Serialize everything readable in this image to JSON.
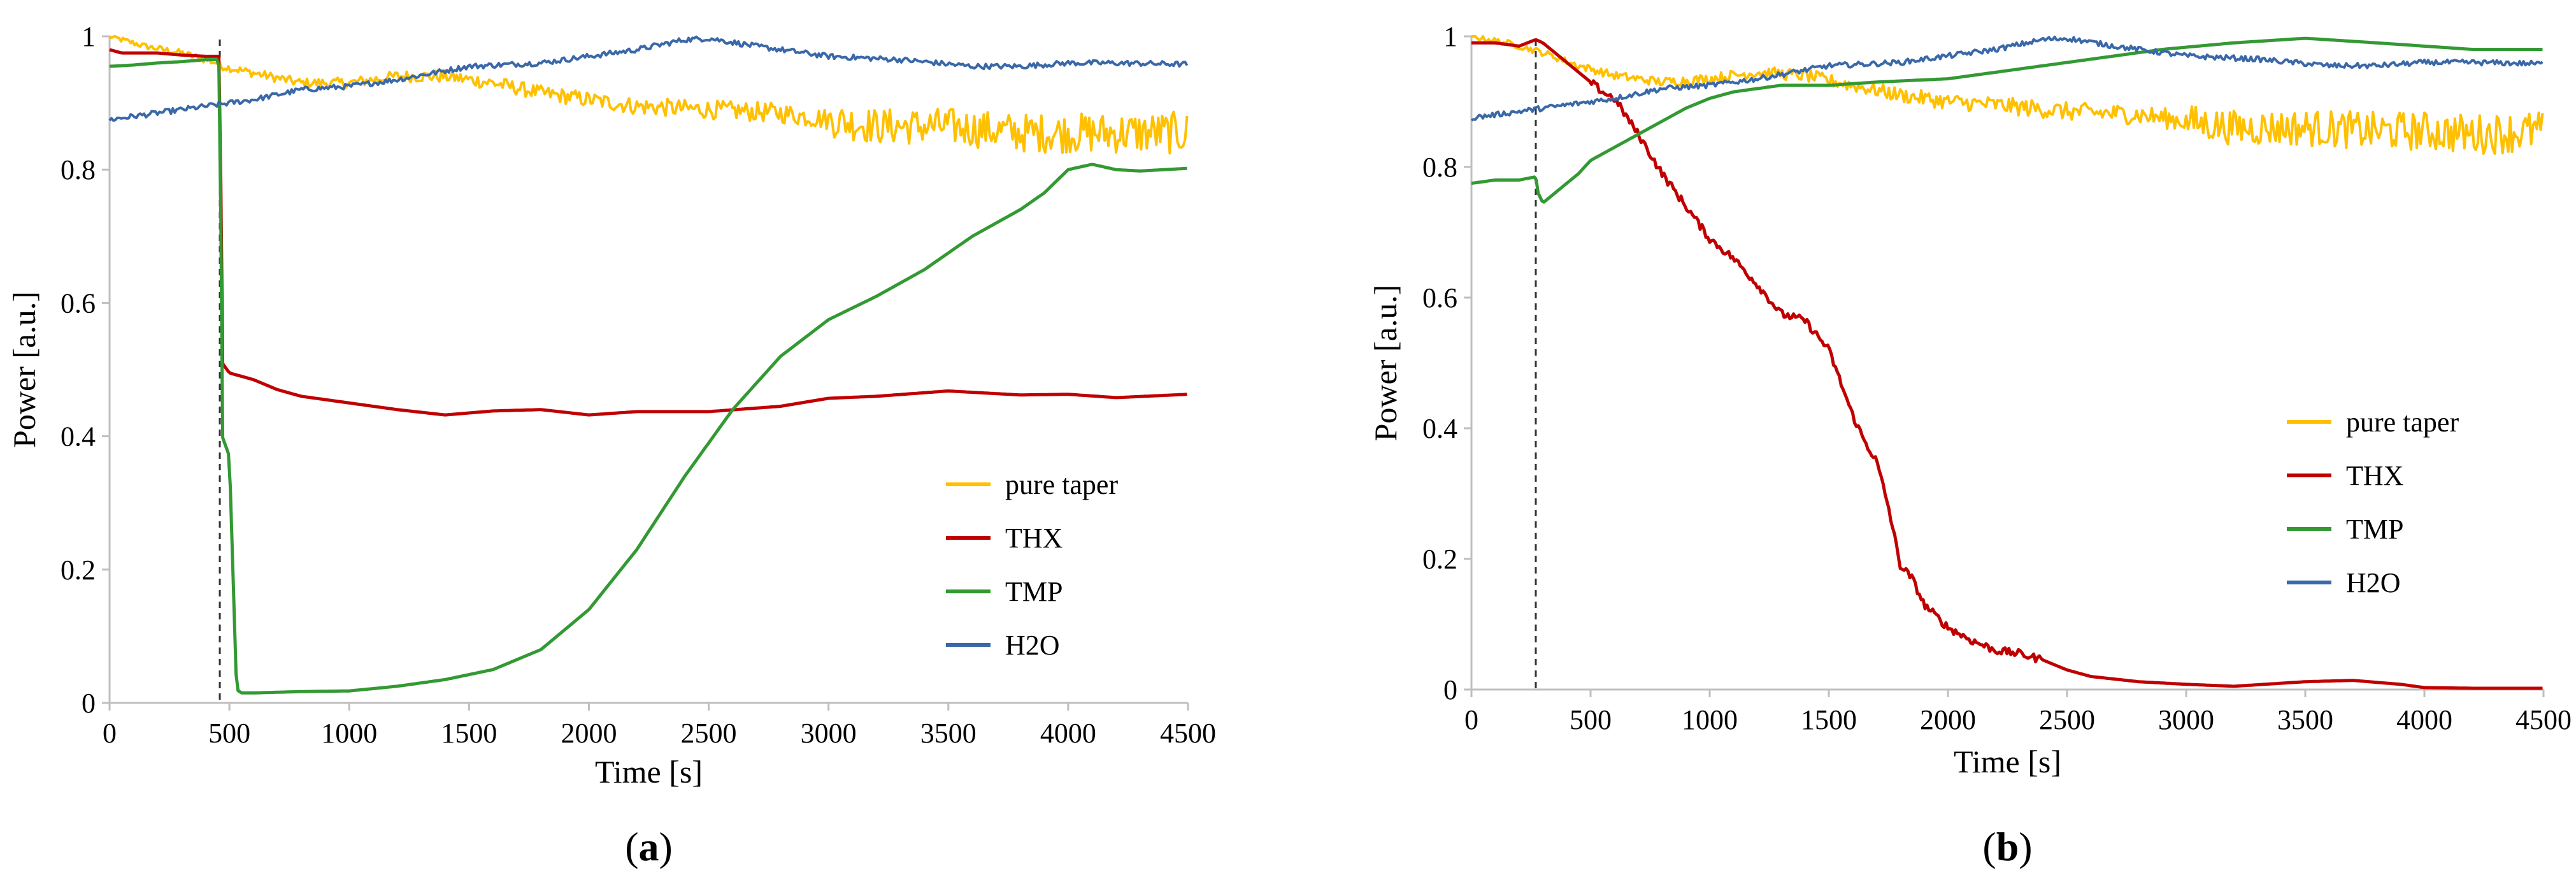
{
  "chart_data": [
    {
      "panel": "a",
      "type": "line",
      "xlabel": "Time [s]",
      "ylabel": "Power [a.u.]",
      "xlim": [
        0,
        4500
      ],
      "ylim": [
        0,
        1
      ],
      "xticks": [
        0,
        500,
        1000,
        1500,
        2000,
        2500,
        3000,
        3500,
        4000,
        4500
      ],
      "yticks": [
        0,
        0.2,
        0.4,
        0.6,
        0.8,
        1
      ],
      "ytick_labels": [
        "0",
        "0.2",
        "0.4",
        "0.6",
        "0.8",
        "1"
      ],
      "marker_x": 460,
      "legend": [
        "pure taper",
        "THX",
        "TMP",
        "H2O"
      ],
      "legend_placement": "lower-right",
      "caption": "(a)",
      "caption_letter": "a",
      "series": [
        {
          "name": "pure taper",
          "color": "#ffc000",
          "x": [
            0,
            150,
            300,
            450,
            470,
            600,
            800,
            1000,
            1200,
            1400,
            1600,
            1800,
            2000,
            2200,
            2500,
            2800,
            3000,
            3200,
            3500,
            3800,
            4000,
            4200,
            4500
          ],
          "values": [
            1.0,
            0.985,
            0.975,
            0.96,
            0.955,
            0.945,
            0.93,
            0.93,
            0.94,
            0.94,
            0.93,
            0.915,
            0.905,
            0.895,
            0.89,
            0.885,
            0.875,
            0.865,
            0.865,
            0.855,
            0.855,
            0.855,
            0.855
          ]
        },
        {
          "name": "THX",
          "color": "#c00000",
          "x": [
            0,
            50,
            100,
            200,
            300,
            400,
            450,
            460,
            470,
            500,
            600,
            700,
            800,
            1000,
            1200,
            1400,
            1600,
            1800,
            2000,
            2200,
            2500,
            2800,
            3000,
            3200,
            3500,
            3800,
            4000,
            4200,
            4500
          ],
          "values": [
            0.98,
            0.975,
            0.975,
            0.975,
            0.972,
            0.97,
            0.97,
            0.97,
            0.51,
            0.495,
            0.485,
            0.47,
            0.46,
            0.45,
            0.44,
            0.432,
            0.438,
            0.44,
            0.432,
            0.437,
            0.437,
            0.445,
            0.457,
            0.46,
            0.468,
            0.462,
            0.463,
            0.458,
            0.463
          ]
        },
        {
          "name": "TMP",
          "color": "#339933",
          "x": [
            0,
            100,
            200,
            300,
            400,
            450,
            460,
            470,
            480,
            500,
            530,
            550,
            600,
            700,
            800,
            1000,
            1200,
            1400,
            1600,
            1800,
            2000,
            2200,
            2400,
            2600,
            2800,
            3000,
            3200,
            3400,
            3600,
            3800,
            3900,
            4000,
            4100,
            4200,
            4300,
            4400,
            4500
          ],
          "values": [
            0.955,
            0.957,
            0.96,
            0.962,
            0.965,
            0.965,
            0.95,
            0.4,
            0.39,
            0.37,
            0.02,
            0.015,
            0.015,
            0.016,
            0.017,
            0.018,
            0.025,
            0.035,
            0.05,
            0.08,
            0.14,
            0.23,
            0.34,
            0.44,
            0.52,
            0.575,
            0.61,
            0.65,
            0.7,
            0.74,
            0.765,
            0.8,
            0.808,
            0.8,
            0.798,
            0.8,
            0.802
          ]
        },
        {
          "name": "H2O",
          "color": "#3a68a8",
          "x": [
            0,
            200,
            400,
            600,
            800,
            1000,
            1200,
            1500,
            1800,
            2000,
            2200,
            2400,
            2500,
            2700,
            3000,
            3300,
            3600,
            3800,
            4000,
            4200,
            4500
          ],
          "values": [
            0.875,
            0.885,
            0.895,
            0.905,
            0.92,
            0.925,
            0.935,
            0.955,
            0.96,
            0.97,
            0.98,
            0.995,
            0.997,
            0.985,
            0.97,
            0.965,
            0.955,
            0.955,
            0.96,
            0.96,
            0.958
          ]
        }
      ]
    },
    {
      "panel": "b",
      "type": "line",
      "xlabel": "Time [s]",
      "ylabel": "Power [a.u.]",
      "xlim": [
        0,
        4500
      ],
      "ylim": [
        0,
        1
      ],
      "xticks": [
        0,
        500,
        1000,
        1500,
        2000,
        2500,
        3000,
        3500,
        4000,
        4500
      ],
      "yticks": [
        0,
        0.2,
        0.4,
        0.6,
        0.8,
        1
      ],
      "ytick_labels": [
        "0",
        "0.2",
        "0.4",
        "0.6",
        "0.8",
        "1"
      ],
      "marker_x": 270,
      "legend": [
        "pure taper",
        "THX",
        "TMP",
        "H2O"
      ],
      "legend_placement": "right",
      "caption": "(b)",
      "caption_letter": "b",
      "series": [
        {
          "name": "pure taper",
          "color": "#ffc000",
          "x": [
            0,
            150,
            300,
            450,
            600,
            800,
            1000,
            1200,
            1400,
            1600,
            1800,
            2000,
            2200,
            2500,
            2800,
            3000,
            3200,
            3500,
            3800,
            4000,
            4200,
            4500
          ],
          "values": [
            1.0,
            0.99,
            0.975,
            0.955,
            0.94,
            0.93,
            0.935,
            0.945,
            0.94,
            0.925,
            0.91,
            0.9,
            0.895,
            0.885,
            0.88,
            0.87,
            0.86,
            0.86,
            0.855,
            0.855,
            0.85,
            0.855
          ]
        },
        {
          "name": "THX",
          "color": "#c00000",
          "x": [
            0,
            100,
            200,
            270,
            300,
            400,
            500,
            550,
            600,
            700,
            800,
            900,
            1000,
            1100,
            1200,
            1300,
            1400,
            1500,
            1550,
            1600,
            1650,
            1700,
            1750,
            1800,
            1850,
            1900,
            2000,
            2100,
            2200,
            2300,
            2400,
            2500,
            2600,
            2800,
            3000,
            3200,
            3500,
            3700,
            3900,
            4000,
            4200,
            4500
          ],
          "values": [
            0.99,
            0.99,
            0.985,
            0.995,
            0.99,
            0.96,
            0.93,
            0.915,
            0.905,
            0.85,
            0.79,
            0.74,
            0.69,
            0.66,
            0.62,
            0.575,
            0.565,
            0.52,
            0.47,
            0.42,
            0.38,
            0.35,
            0.28,
            0.19,
            0.17,
            0.13,
            0.095,
            0.075,
            0.06,
            0.055,
            0.045,
            0.03,
            0.02,
            0.012,
            0.008,
            0.005,
            0.012,
            0.014,
            0.008,
            0.003,
            0.002,
            0.002
          ]
        },
        {
          "name": "TMP",
          "color": "#339933",
          "x": [
            0,
            100,
            200,
            270,
            280,
            300,
            350,
            400,
            450,
            500,
            600,
            700,
            800,
            900,
            1000,
            1100,
            1200,
            1300,
            1500,
            1700,
            2000,
            2300,
            2600,
            2900,
            3200,
            3500,
            3800,
            4000,
            4200,
            4500
          ],
          "values": [
            0.775,
            0.78,
            0.78,
            0.785,
            0.76,
            0.745,
            0.76,
            0.775,
            0.79,
            0.81,
            0.83,
            0.85,
            0.87,
            0.89,
            0.905,
            0.915,
            0.92,
            0.925,
            0.925,
            0.93,
            0.935,
            0.95,
            0.965,
            0.98,
            0.99,
            0.997,
            0.99,
            0.985,
            0.98,
            0.98
          ]
        },
        {
          "name": "H2O",
          "color": "#3a68a8",
          "x": [
            0,
            200,
            400,
            600,
            800,
            1000,
            1200,
            1500,
            1800,
            2000,
            2200,
            2400,
            2500,
            2700,
            3000,
            3300,
            3600,
            3800,
            4000,
            4200,
            4500
          ],
          "values": [
            0.875,
            0.885,
            0.895,
            0.905,
            0.92,
            0.925,
            0.935,
            0.955,
            0.96,
            0.97,
            0.98,
            0.995,
            0.997,
            0.985,
            0.97,
            0.965,
            0.955,
            0.955,
            0.96,
            0.96,
            0.958
          ]
        }
      ]
    }
  ]
}
